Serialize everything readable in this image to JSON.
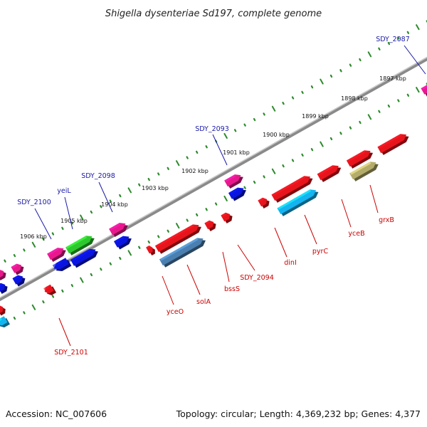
{
  "title": "Shigella dysenteriae Sd197, complete genome",
  "accession": "Accession: NC_007606",
  "topology": "Topology: circular; Length: 4,369,232 bp; Genes: 4,377",
  "colors": {
    "backbone": "#8a8a8a",
    "tick": "#2d8a2d",
    "label_top": "#1a1aa8",
    "label_bottom": "#cc0000",
    "red_gene": "#e8141c",
    "blue_gene": "#0a14e0",
    "magenta_gene": "#e8188c",
    "green_gene": "#2ec82e",
    "cyan_gene": "#14b4f0",
    "steel_gene": "#4a7fb0",
    "olive_gene": "#b4ac6a"
  },
  "kbp_labels": [
    "1897 kbp",
    "1898 kbp",
    "1899 kbp",
    "1900 kbp",
    "1901 kbp",
    "1902 kbp",
    "1903 kbp",
    "1904 kbp",
    "1905 kbp",
    "1906 kbp"
  ],
  "top_labels": [
    "SDY_2087",
    "SDY_2093",
    "SDY_2098",
    "yeiL",
    "SDY_2100"
  ],
  "bottom_labels": [
    "grxB",
    "yceB",
    "pyrC",
    "dinI",
    "SDY_2094",
    "bssS",
    "solA",
    "yceO",
    "SDY_2101"
  ]
}
